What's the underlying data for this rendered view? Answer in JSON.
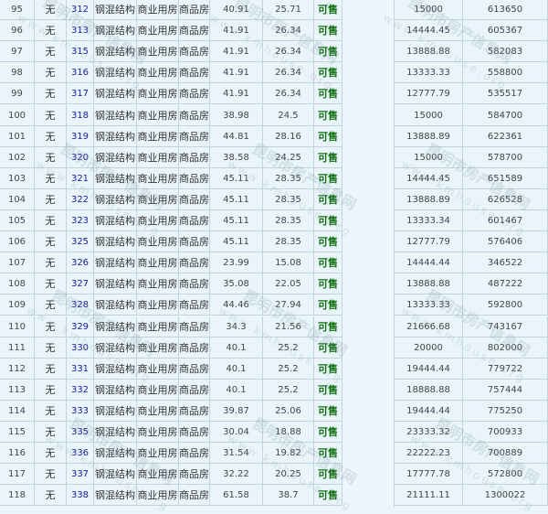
{
  "table": {
    "rows": [
      {
        "no": "95",
        "flag": "无",
        "room": "312",
        "structure": "钢混结构",
        "use": "商业用房",
        "type": "商品房",
        "area": "40.91",
        "inner_area": "25.71",
        "status": "可售",
        "unit_price": "15000",
        "total": "613650"
      },
      {
        "no": "96",
        "flag": "无",
        "room": "313",
        "structure": "钢混结构",
        "use": "商业用房",
        "type": "商品房",
        "area": "41.91",
        "inner_area": "26.34",
        "status": "可售",
        "unit_price": "14444.45",
        "total": "605367"
      },
      {
        "no": "97",
        "flag": "无",
        "room": "315",
        "structure": "钢混结构",
        "use": "商业用房",
        "type": "商品房",
        "area": "41.91",
        "inner_area": "26.34",
        "status": "可售",
        "unit_price": "13888.88",
        "total": "582083"
      },
      {
        "no": "98",
        "flag": "无",
        "room": "316",
        "structure": "钢混结构",
        "use": "商业用房",
        "type": "商品房",
        "area": "41.91",
        "inner_area": "26.34",
        "status": "可售",
        "unit_price": "13333.33",
        "total": "558800"
      },
      {
        "no": "99",
        "flag": "无",
        "room": "317",
        "structure": "钢混结构",
        "use": "商业用房",
        "type": "商品房",
        "area": "41.91",
        "inner_area": "26.34",
        "status": "可售",
        "unit_price": "12777.79",
        "total": "535517"
      },
      {
        "no": "100",
        "flag": "无",
        "room": "318",
        "structure": "钢混结构",
        "use": "商业用房",
        "type": "商品房",
        "area": "38.98",
        "inner_area": "24.5",
        "status": "可售",
        "unit_price": "15000",
        "total": "584700"
      },
      {
        "no": "101",
        "flag": "无",
        "room": "319",
        "structure": "钢混结构",
        "use": "商业用房",
        "type": "商品房",
        "area": "44.81",
        "inner_area": "28.16",
        "status": "可售",
        "unit_price": "13888.89",
        "total": "622361"
      },
      {
        "no": "102",
        "flag": "无",
        "room": "320",
        "structure": "钢混结构",
        "use": "商业用房",
        "type": "商品房",
        "area": "38.58",
        "inner_area": "24.25",
        "status": "可售",
        "unit_price": "15000",
        "total": "578700"
      },
      {
        "no": "103",
        "flag": "无",
        "room": "321",
        "structure": "钢混结构",
        "use": "商业用房",
        "type": "商品房",
        "area": "45.11",
        "inner_area": "28.35",
        "status": "可售",
        "unit_price": "14444.45",
        "total": "651589"
      },
      {
        "no": "104",
        "flag": "无",
        "room": "322",
        "structure": "钢混结构",
        "use": "商业用房",
        "type": "商品房",
        "area": "45.11",
        "inner_area": "28.35",
        "status": "可售",
        "unit_price": "13888.89",
        "total": "626528"
      },
      {
        "no": "105",
        "flag": "无",
        "room": "323",
        "structure": "钢混结构",
        "use": "商业用房",
        "type": "商品房",
        "area": "45.11",
        "inner_area": "28.35",
        "status": "可售",
        "unit_price": "13333.34",
        "total": "601467"
      },
      {
        "no": "106",
        "flag": "无",
        "room": "325",
        "structure": "钢混结构",
        "use": "商业用房",
        "type": "商品房",
        "area": "45.11",
        "inner_area": "28.35",
        "status": "可售",
        "unit_price": "12777.79",
        "total": "576406"
      },
      {
        "no": "107",
        "flag": "无",
        "room": "326",
        "structure": "钢混结构",
        "use": "商业用房",
        "type": "商品房",
        "area": "23.99",
        "inner_area": "15.08",
        "status": "可售",
        "unit_price": "14444.44",
        "total": "346522"
      },
      {
        "no": "108",
        "flag": "无",
        "room": "327",
        "structure": "钢混结构",
        "use": "商业用房",
        "type": "商品房",
        "area": "35.08",
        "inner_area": "22.05",
        "status": "可售",
        "unit_price": "13888.88",
        "total": "487222"
      },
      {
        "no": "109",
        "flag": "无",
        "room": "328",
        "structure": "钢混结构",
        "use": "商业用房",
        "type": "商品房",
        "area": "44.46",
        "inner_area": "27.94",
        "status": "可售",
        "unit_price": "13333.33",
        "total": "592800"
      },
      {
        "no": "110",
        "flag": "无",
        "room": "329",
        "structure": "钢混结构",
        "use": "商业用房",
        "type": "商品房",
        "area": "34.3",
        "inner_area": "21.56",
        "status": "可售",
        "unit_price": "21666.68",
        "total": "743167"
      },
      {
        "no": "111",
        "flag": "无",
        "room": "330",
        "structure": "钢混结构",
        "use": "商业用房",
        "type": "商品房",
        "area": "40.1",
        "inner_area": "25.2",
        "status": "可售",
        "unit_price": "20000",
        "total": "802000"
      },
      {
        "no": "112",
        "flag": "无",
        "room": "331",
        "structure": "钢混结构",
        "use": "商业用房",
        "type": "商品房",
        "area": "40.1",
        "inner_area": "25.2",
        "status": "可售",
        "unit_price": "19444.44",
        "total": "779722"
      },
      {
        "no": "113",
        "flag": "无",
        "room": "332",
        "structure": "钢混结构",
        "use": "商业用房",
        "type": "商品房",
        "area": "40.1",
        "inner_area": "25.2",
        "status": "可售",
        "unit_price": "18888.88",
        "total": "757444"
      },
      {
        "no": "114",
        "flag": "无",
        "room": "333",
        "structure": "钢混结构",
        "use": "商业用房",
        "type": "商品房",
        "area": "39.87",
        "inner_area": "25.06",
        "status": "可售",
        "unit_price": "19444.44",
        "total": "775250"
      },
      {
        "no": "115",
        "flag": "无",
        "room": "335",
        "structure": "钢混结构",
        "use": "商业用房",
        "type": "商品房",
        "area": "30.04",
        "inner_area": "18.88",
        "status": "可售",
        "unit_price": "23333.32",
        "total": "700933"
      },
      {
        "no": "116",
        "flag": "无",
        "room": "336",
        "structure": "钢混结构",
        "use": "商业用房",
        "type": "商品房",
        "area": "31.54",
        "inner_area": "19.82",
        "status": "可售",
        "unit_price": "22222.23",
        "total": "700889"
      },
      {
        "no": "117",
        "flag": "无",
        "room": "337",
        "structure": "钢混结构",
        "use": "商业用房",
        "type": "商品房",
        "area": "32.22",
        "inner_area": "20.25",
        "status": "可售",
        "unit_price": "17777.78",
        "total": "572800"
      },
      {
        "no": "118",
        "flag": "无",
        "room": "338",
        "structure": "钢混结构",
        "use": "商业用房",
        "type": "商品房",
        "area": "61.58",
        "inner_area": "38.7",
        "status": "可售",
        "unit_price": "21111.11",
        "total": "1300022"
      }
    ]
  },
  "colors": {
    "background": "#eaf5fb",
    "status": "#107010",
    "room_link": "#1a1a9a",
    "border": "#c3d3dc"
  },
  "watermark": {
    "cn": "昆明市房产信息网",
    "url": "www.kmhouse.org"
  }
}
